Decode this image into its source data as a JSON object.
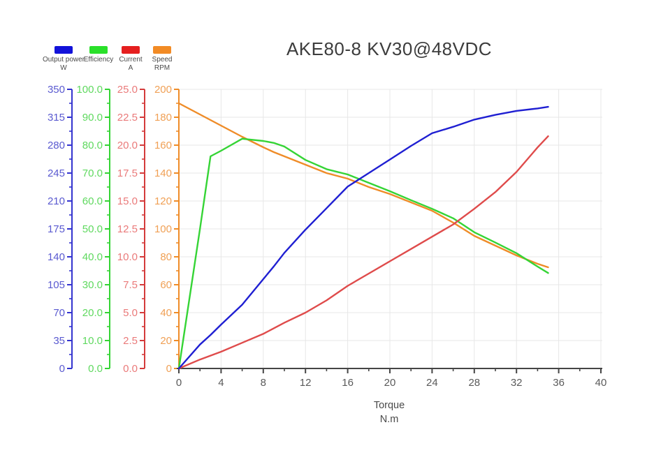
{
  "title": "AKE80-8 KV30@48VDC",
  "legend": {
    "items": [
      {
        "label": "Output power",
        "unit": "W",
        "swatch_color": "#1212d9"
      },
      {
        "label": "Efficiency",
        "unit": "",
        "swatch_color": "#2ae02a"
      },
      {
        "label": "Current",
        "unit": "A",
        "swatch_color": "#e51f1f"
      },
      {
        "label": "Speed",
        "unit": "RPM",
        "swatch_color": "#f28b25"
      }
    ]
  },
  "chart_data": {
    "type": "line",
    "title": "AKE80-8 KV30@48VDC",
    "title_color": "#3c3c3c",
    "grid": {
      "on": true,
      "color": "#e7e7e7"
    },
    "x_axis": {
      "label": "Torque",
      "unit": "N.m",
      "min": 0,
      "max": 40,
      "tick_step": 4,
      "minor_tick_step": 2,
      "ticks": [
        "0",
        "4",
        "8",
        "12",
        "16",
        "20",
        "24",
        "28",
        "32",
        "36",
        "40"
      ],
      "axis_color": "#454545",
      "tick_label_color": "#5a5a5a"
    },
    "y_axes": [
      {
        "name": "Output power W",
        "min": 0,
        "max": 350,
        "step": 35,
        "decimals": 0,
        "color": "#3434cf",
        "label_color": "#5a5ad0",
        "ticks": [
          "0",
          "35",
          "70",
          "105",
          "140",
          "175",
          "210",
          "245",
          "280",
          "315",
          "350"
        ]
      },
      {
        "name": "Efficiency",
        "min": 0,
        "max": 100,
        "step": 10,
        "decimals": 1,
        "color": "#35d435",
        "label_color": "#5fd95f",
        "ticks": [
          "0.0",
          "10.0",
          "20.0",
          "30.0",
          "40.0",
          "50.0",
          "60.0",
          "70.0",
          "80.0",
          "90.0",
          "100.0"
        ]
      },
      {
        "name": "Current A",
        "min": 0,
        "max": 25,
        "step": 2.5,
        "decimals": 1,
        "color": "#d43b3b",
        "label_color": "#ea7a7a",
        "ticks": [
          "0.0",
          "2.5",
          "5.0",
          "7.5",
          "10.0",
          "12.5",
          "15.0",
          "17.5",
          "20.0",
          "22.5",
          "25.0"
        ]
      },
      {
        "name": "Speed RPM",
        "min": 0,
        "max": 200,
        "step": 20,
        "decimals": 0,
        "color": "#ef8c28",
        "label_color": "#f0a055",
        "ticks": [
          "0",
          "20",
          "40",
          "60",
          "80",
          "100",
          "120",
          "140",
          "160",
          "180",
          "200"
        ]
      }
    ],
    "series": [
      {
        "name": "Output power",
        "unit": "W",
        "axis": 0,
        "color": "#1f1fd2",
        "points": [
          [
            0,
            0
          ],
          [
            2,
            30
          ],
          [
            3,
            42
          ],
          [
            4,
            55
          ],
          [
            6,
            80
          ],
          [
            8,
            112
          ],
          [
            9,
            128
          ],
          [
            10,
            145
          ],
          [
            12,
            174
          ],
          [
            14,
            201
          ],
          [
            16,
            228
          ],
          [
            18,
            245
          ],
          [
            20,
            262
          ],
          [
            22,
            279
          ],
          [
            24,
            295
          ],
          [
            26,
            303
          ],
          [
            28,
            312
          ],
          [
            30,
            318
          ],
          [
            32,
            323
          ],
          [
            34,
            326
          ],
          [
            35,
            328
          ]
        ]
      },
      {
        "name": "Efficiency",
        "unit": "",
        "axis": 1,
        "color": "#35d435",
        "points": [
          [
            0,
            0
          ],
          [
            2,
            50
          ],
          [
            3,
            76
          ],
          [
            4,
            78
          ],
          [
            6,
            82.3
          ],
          [
            8,
            81.5
          ],
          [
            9,
            80.8
          ],
          [
            10,
            79.5
          ],
          [
            12,
            74.7
          ],
          [
            14,
            71.4
          ],
          [
            16,
            69.5
          ],
          [
            18,
            66.5
          ],
          [
            20,
            63.5
          ],
          [
            22,
            60.3
          ],
          [
            24,
            57.2
          ],
          [
            26,
            53.8
          ],
          [
            28,
            48.8
          ],
          [
            30,
            45.1
          ],
          [
            32,
            41.3
          ],
          [
            34,
            36.5
          ],
          [
            35,
            34.2
          ]
        ]
      },
      {
        "name": "Current",
        "unit": "A",
        "axis": 2,
        "color": "#df4b4b",
        "points": [
          [
            0,
            0
          ],
          [
            2,
            0.8
          ],
          [
            3,
            1.15
          ],
          [
            4,
            1.5
          ],
          [
            6,
            2.3
          ],
          [
            8,
            3.1
          ],
          [
            9,
            3.6
          ],
          [
            10,
            4.1
          ],
          [
            12,
            5.0
          ],
          [
            14,
            6.1
          ],
          [
            16,
            7.4
          ],
          [
            18,
            8.5
          ],
          [
            20,
            9.6
          ],
          [
            22,
            10.7
          ],
          [
            24,
            11.8
          ],
          [
            26,
            12.9
          ],
          [
            28,
            14.3
          ],
          [
            30,
            15.8
          ],
          [
            32,
            17.6
          ],
          [
            34,
            19.8
          ],
          [
            35,
            20.8
          ]
        ]
      },
      {
        "name": "Speed",
        "unit": "RPM",
        "axis": 3,
        "color": "#ef8c28",
        "points": [
          [
            0,
            190
          ],
          [
            2,
            182
          ],
          [
            3,
            178
          ],
          [
            4,
            174
          ],
          [
            6,
            166
          ],
          [
            8,
            158.5
          ],
          [
            9,
            155
          ],
          [
            10,
            152
          ],
          [
            12,
            146
          ],
          [
            14,
            140
          ],
          [
            16,
            136
          ],
          [
            18,
            130
          ],
          [
            20,
            125
          ],
          [
            22,
            119
          ],
          [
            24,
            113
          ],
          [
            26,
            104.5
          ],
          [
            28,
            95
          ],
          [
            30,
            88
          ],
          [
            32,
            81
          ],
          [
            34,
            75
          ],
          [
            35,
            72.5
          ]
        ]
      }
    ]
  }
}
